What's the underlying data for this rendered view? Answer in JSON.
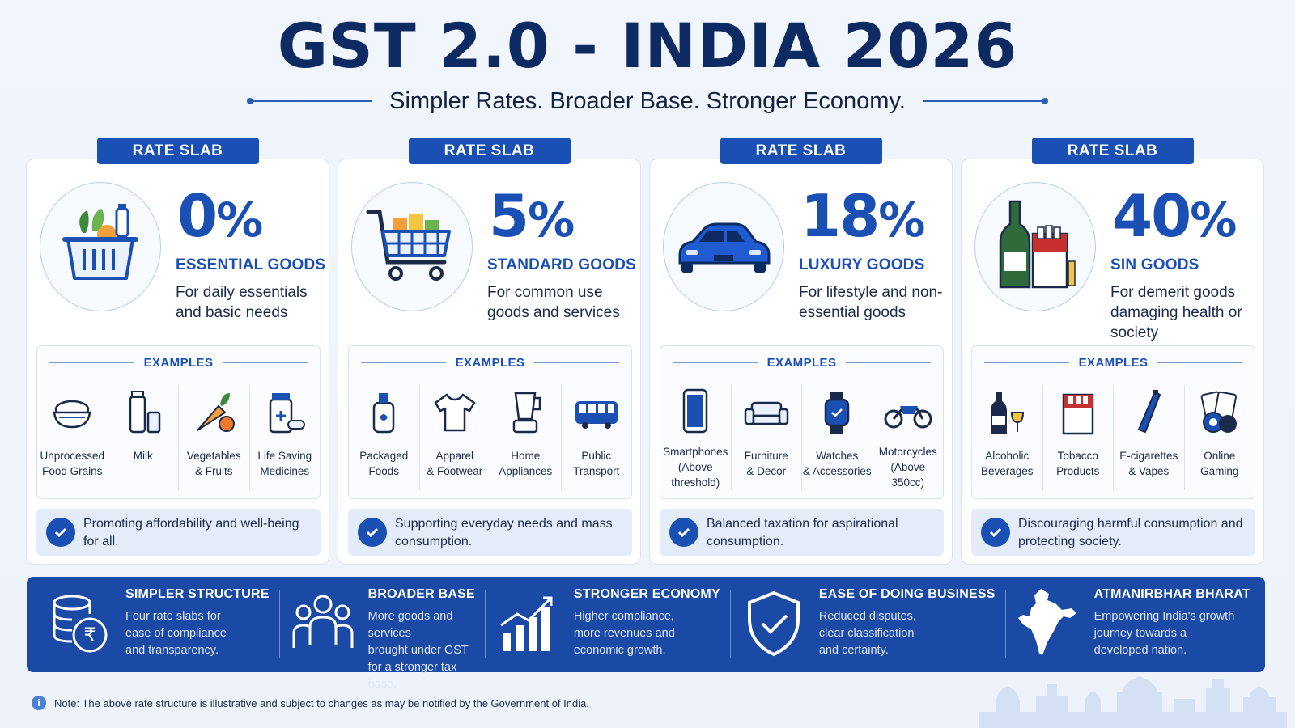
{
  "header": {
    "title": "GST 2.0 - INDIA 2026",
    "subtitle": "Simpler Rates. Broader Base. Stronger Economy."
  },
  "cards": [
    {
      "tab": "RATE SLAB",
      "rate": "0",
      "pct": "%",
      "category": "ESSENTIAL GOODS",
      "description": "For daily essentials and basic needs",
      "examples_heading": "EXAMPLES",
      "examples": [
        {
          "label": "Unprocessed\nFood Grains",
          "icon": "rice-bowl-icon"
        },
        {
          "label": "Milk",
          "icon": "milk-icon"
        },
        {
          "label": "Vegetables\n& Fruits",
          "icon": "vegetables-icon"
        },
        {
          "label": "Life Saving\nMedicines",
          "icon": "medicine-icon"
        }
      ],
      "bottom_note": "Promoting affordability and well-being for all.",
      "hero_icon": "grocery-basket-icon"
    },
    {
      "tab": "RATE SLAB",
      "rate": "5",
      "pct": "%",
      "category": "STANDARD GOODS",
      "description": "For common use goods and services",
      "examples_heading": "EXAMPLES",
      "examples": [
        {
          "label": "Packaged\nFoods",
          "icon": "packaged-food-icon"
        },
        {
          "label": "Apparel\n& Footwear",
          "icon": "tshirt-icon"
        },
        {
          "label": "Home\nAppliances",
          "icon": "blender-icon"
        },
        {
          "label": "Public\nTransport",
          "icon": "bus-icon"
        }
      ],
      "bottom_note": "Supporting everyday needs and mass consumption.",
      "hero_icon": "shopping-cart-icon"
    },
    {
      "tab": "RATE SLAB",
      "rate": "18",
      "pct": "%",
      "category": "LUXURY GOODS",
      "description": "For lifestyle and non-essential goods",
      "examples_heading": "EXAMPLES",
      "examples": [
        {
          "label": "Smartphones\n(Above\nthreshold)",
          "icon": "smartphone-icon"
        },
        {
          "label": "Furniture\n& Decor",
          "icon": "sofa-icon"
        },
        {
          "label": "Watches\n& Accessories",
          "icon": "watch-icon"
        },
        {
          "label": "Motorcycles\n(Above\n350cc)",
          "icon": "motorcycle-icon"
        }
      ],
      "bottom_note": "Balanced taxation for aspirational consumption.",
      "hero_icon": "car-icon"
    },
    {
      "tab": "RATE SLAB",
      "rate": "40",
      "pct": "%",
      "category": "SIN GOODS",
      "description": "For demerit goods damaging health or society",
      "examples_heading": "EXAMPLES",
      "examples": [
        {
          "label": "Alcoholic\nBeverages",
          "icon": "wine-icon"
        },
        {
          "label": "Tobacco\nProducts",
          "icon": "cigarette-pack-icon"
        },
        {
          "label": "E-cigarettes\n& Vapes",
          "icon": "vape-icon"
        },
        {
          "label": "Online\nGaming",
          "icon": "gaming-chips-icon"
        }
      ],
      "bottom_note": "Discouraging harmful consumption and protecting society.",
      "hero_icon": "bottle-and-cigarettes-icon"
    }
  ],
  "benefits": [
    {
      "title": "SIMPLER STRUCTURE",
      "text": "Four rate slabs for\nease of compliance\nand transparency.",
      "icon": "rupee-coins-icon"
    },
    {
      "title": "BROADER BASE",
      "text": "More goods and services\nbrought under GST\nfor a stronger tax base.",
      "icon": "people-group-icon"
    },
    {
      "title": "STRONGER ECONOMY",
      "text": "Higher compliance,\nmore revenues and\neconomic growth.",
      "icon": "growth-chart-icon"
    },
    {
      "title": "EASE OF DOING BUSINESS",
      "text": "Reduced disputes,\nclear classification\nand certainty.",
      "icon": "shield-check-icon"
    },
    {
      "title": "ATMANIRBHAR BHARAT",
      "text": "Empowering India's growth\njourney towards a\ndeveloped nation.",
      "icon": "india-map-icon"
    }
  ],
  "footnote": "Note: The above rate structure is illustrative and subject to changes as may be notified by the Government of India.",
  "colors": {
    "primary": "#1a4fb4",
    "navy": "#0d2a63",
    "band": "#1a4aa6"
  }
}
